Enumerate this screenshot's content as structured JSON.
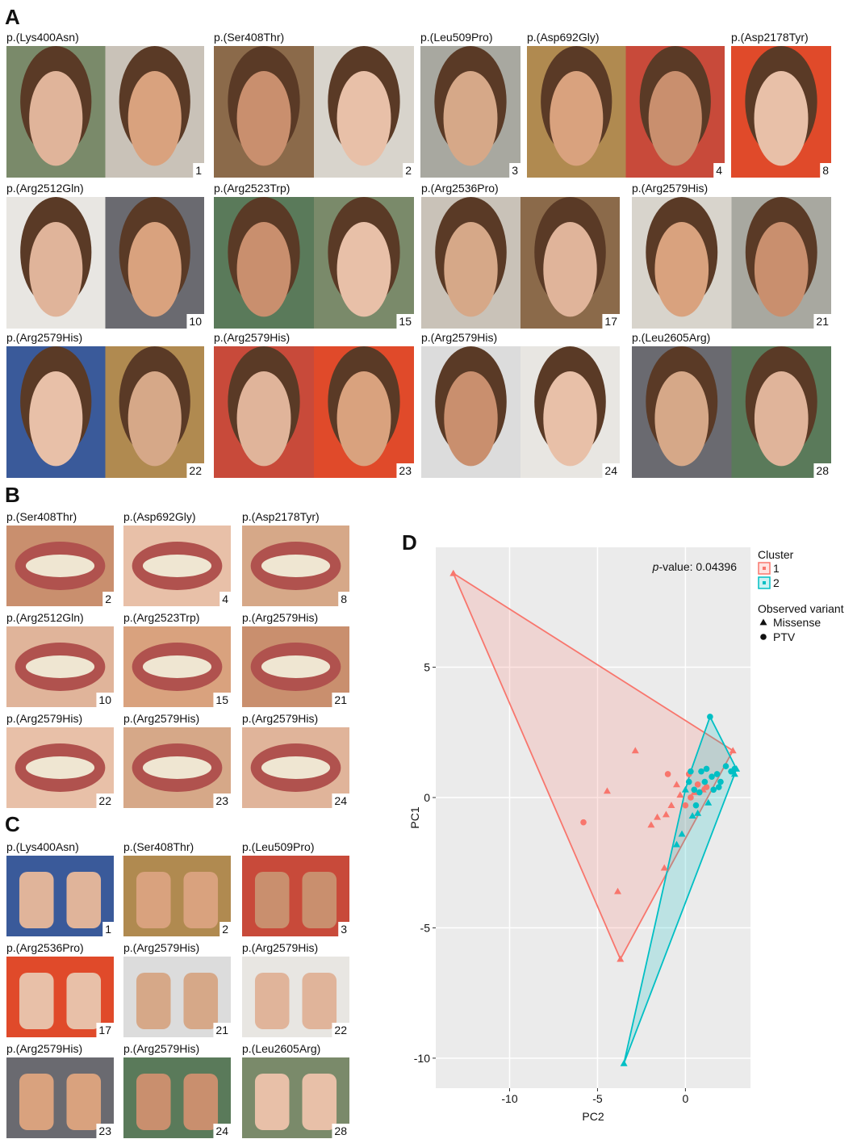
{
  "panel_a": {
    "letter": "A",
    "items": [
      {
        "variant": "p.(Lys400Asn)",
        "patient": 1
      },
      {
        "variant": "p.(Ser408Thr)",
        "patient": 2
      },
      {
        "variant": "p.(Leu509Pro)",
        "patient": 3
      },
      {
        "variant": "p.(Asp692Gly)",
        "patient": 4
      },
      {
        "variant": "p.(Asp2178Tyr)",
        "patient": 8
      },
      {
        "variant": "p.(Arg2512Gln)",
        "patient": 10
      },
      {
        "variant": "p.(Arg2523Trp)",
        "patient": 15
      },
      {
        "variant": "p.(Arg2536Pro)",
        "patient": 17
      },
      {
        "variant": "p.(Arg2579His)",
        "patient": 21
      },
      {
        "variant": "p.(Arg2579His)",
        "patient": 22
      },
      {
        "variant": "p.(Arg2579His)",
        "patient": 23
      },
      {
        "variant": "p.(Arg2579His)",
        "patient": 24
      },
      {
        "variant": "p.(Leu2605Arg)",
        "patient": 28
      }
    ]
  },
  "panel_b": {
    "letter": "B",
    "items": [
      {
        "variant": "p.(Ser408Thr)",
        "patient": 2
      },
      {
        "variant": "p.(Asp692Gly)",
        "patient": 4
      },
      {
        "variant": "p.(Asp2178Tyr)",
        "patient": 8
      },
      {
        "variant": "p.(Arg2512Gln)",
        "patient": 10
      },
      {
        "variant": "p.(Arg2523Trp)",
        "patient": 15
      },
      {
        "variant": "p.(Arg2579His)",
        "patient": 21
      },
      {
        "variant": "p.(Arg2579His)",
        "patient": 22
      },
      {
        "variant": "p.(Arg2579His)",
        "patient": 23
      },
      {
        "variant": "p.(Arg2579His)",
        "patient": 24
      }
    ]
  },
  "panel_c": {
    "letter": "C",
    "items": [
      {
        "variant": "p.(Lys400Asn)",
        "patient": 1
      },
      {
        "variant": "p.(Ser408Thr)",
        "patient": 2
      },
      {
        "variant": "p.(Leu509Pro)",
        "patient": 3
      },
      {
        "variant": "p.(Arg2536Pro)",
        "patient": 17
      },
      {
        "variant": "p.(Arg2579His)",
        "patient": 21
      },
      {
        "variant": "p.(Arg2579His)",
        "patient": 22
      },
      {
        "variant": "p.(Arg2579His)",
        "patient": 23
      },
      {
        "variant": "p.(Arg2579His)",
        "patient": 24
      },
      {
        "variant": "p.(Leu2605Arg)",
        "patient": 28
      }
    ]
  },
  "chart_data": {
    "type": "scatter",
    "letter": "D",
    "x_label": "PC2",
    "y_label": "PC1",
    "annotation_italic": "p",
    "annotation": "-value: 0.04396",
    "xlim": [
      -14.2,
      3.7
    ],
    "ylim": [
      -11.15,
      9.6
    ],
    "xticks": [
      -10,
      -5,
      0
    ],
    "yticks": [
      -10,
      -5,
      0,
      5
    ],
    "grid": true,
    "legend_color_title": "Cluster",
    "legend_shape_title": "Observed variant",
    "shapes": [
      "Missense",
      "PTV"
    ],
    "series": [
      {
        "name": "1",
        "color": "#F8766D",
        "x": [
          -13.2,
          -3.7,
          2.7,
          -2.85,
          -4.45,
          -3.85,
          -1.95,
          -1.6,
          -1.1,
          -1.2,
          -0.5,
          -0.3,
          -0.8,
          0.5,
          1.0,
          -5.8,
          -1.0,
          0.2,
          0.7,
          0.3,
          1.2,
          0.0
        ],
        "values": [
          8.6,
          -6.2,
          1.8,
          1.8,
          0.25,
          -3.6,
          -1.05,
          -0.75,
          -0.65,
          -2.7,
          0.5,
          0.1,
          -0.3,
          0.2,
          0.3,
          -0.95,
          0.9,
          0.9,
          0.5,
          0.0,
          0.4,
          -0.3
        ],
        "variant": [
          "Missense",
          "Missense",
          "Missense",
          "Missense",
          "Missense",
          "Missense",
          "Missense",
          "Missense",
          "Missense",
          "Missense",
          "Missense",
          "Missense",
          "Missense",
          "Missense",
          "Missense",
          "PTV",
          "PTV",
          "PTV",
          "PTV",
          "PTV",
          "PTV",
          "PTV"
        ]
      },
      {
        "name": "2",
        "color": "#00BFC4",
        "x": [
          1.4,
          -3.5,
          2.9,
          2.8,
          -0.2,
          0.4,
          0.7,
          -0.5,
          0.0,
          1.3,
          0.2,
          0.5,
          0.9,
          1.2,
          1.5,
          1.8,
          2.3,
          2.6,
          2.0,
          1.6,
          1.1,
          0.8,
          0.6,
          0.3,
          1.9,
          2.8
        ],
        "values": [
          3.1,
          -10.2,
          1.1,
          0.9,
          -1.4,
          -0.7,
          -0.6,
          -1.8,
          0.3,
          -0.2,
          0.6,
          0.3,
          1.0,
          1.1,
          0.8,
          0.9,
          1.2,
          1.0,
          0.6,
          0.3,
          0.6,
          0.2,
          -0.3,
          1.0,
          0.4,
          1.1
        ],
        "variant": [
          "PTV",
          "Missense",
          "Missense",
          "Missense",
          "Missense",
          "Missense",
          "Missense",
          "Missense",
          "Missense",
          "Missense",
          "PTV",
          "PTV",
          "PTV",
          "PTV",
          "PTV",
          "PTV",
          "PTV",
          "PTV",
          "PTV",
          "PTV",
          "PTV",
          "PTV",
          "PTV",
          "PTV",
          "PTV",
          "PTV"
        ]
      }
    ]
  }
}
